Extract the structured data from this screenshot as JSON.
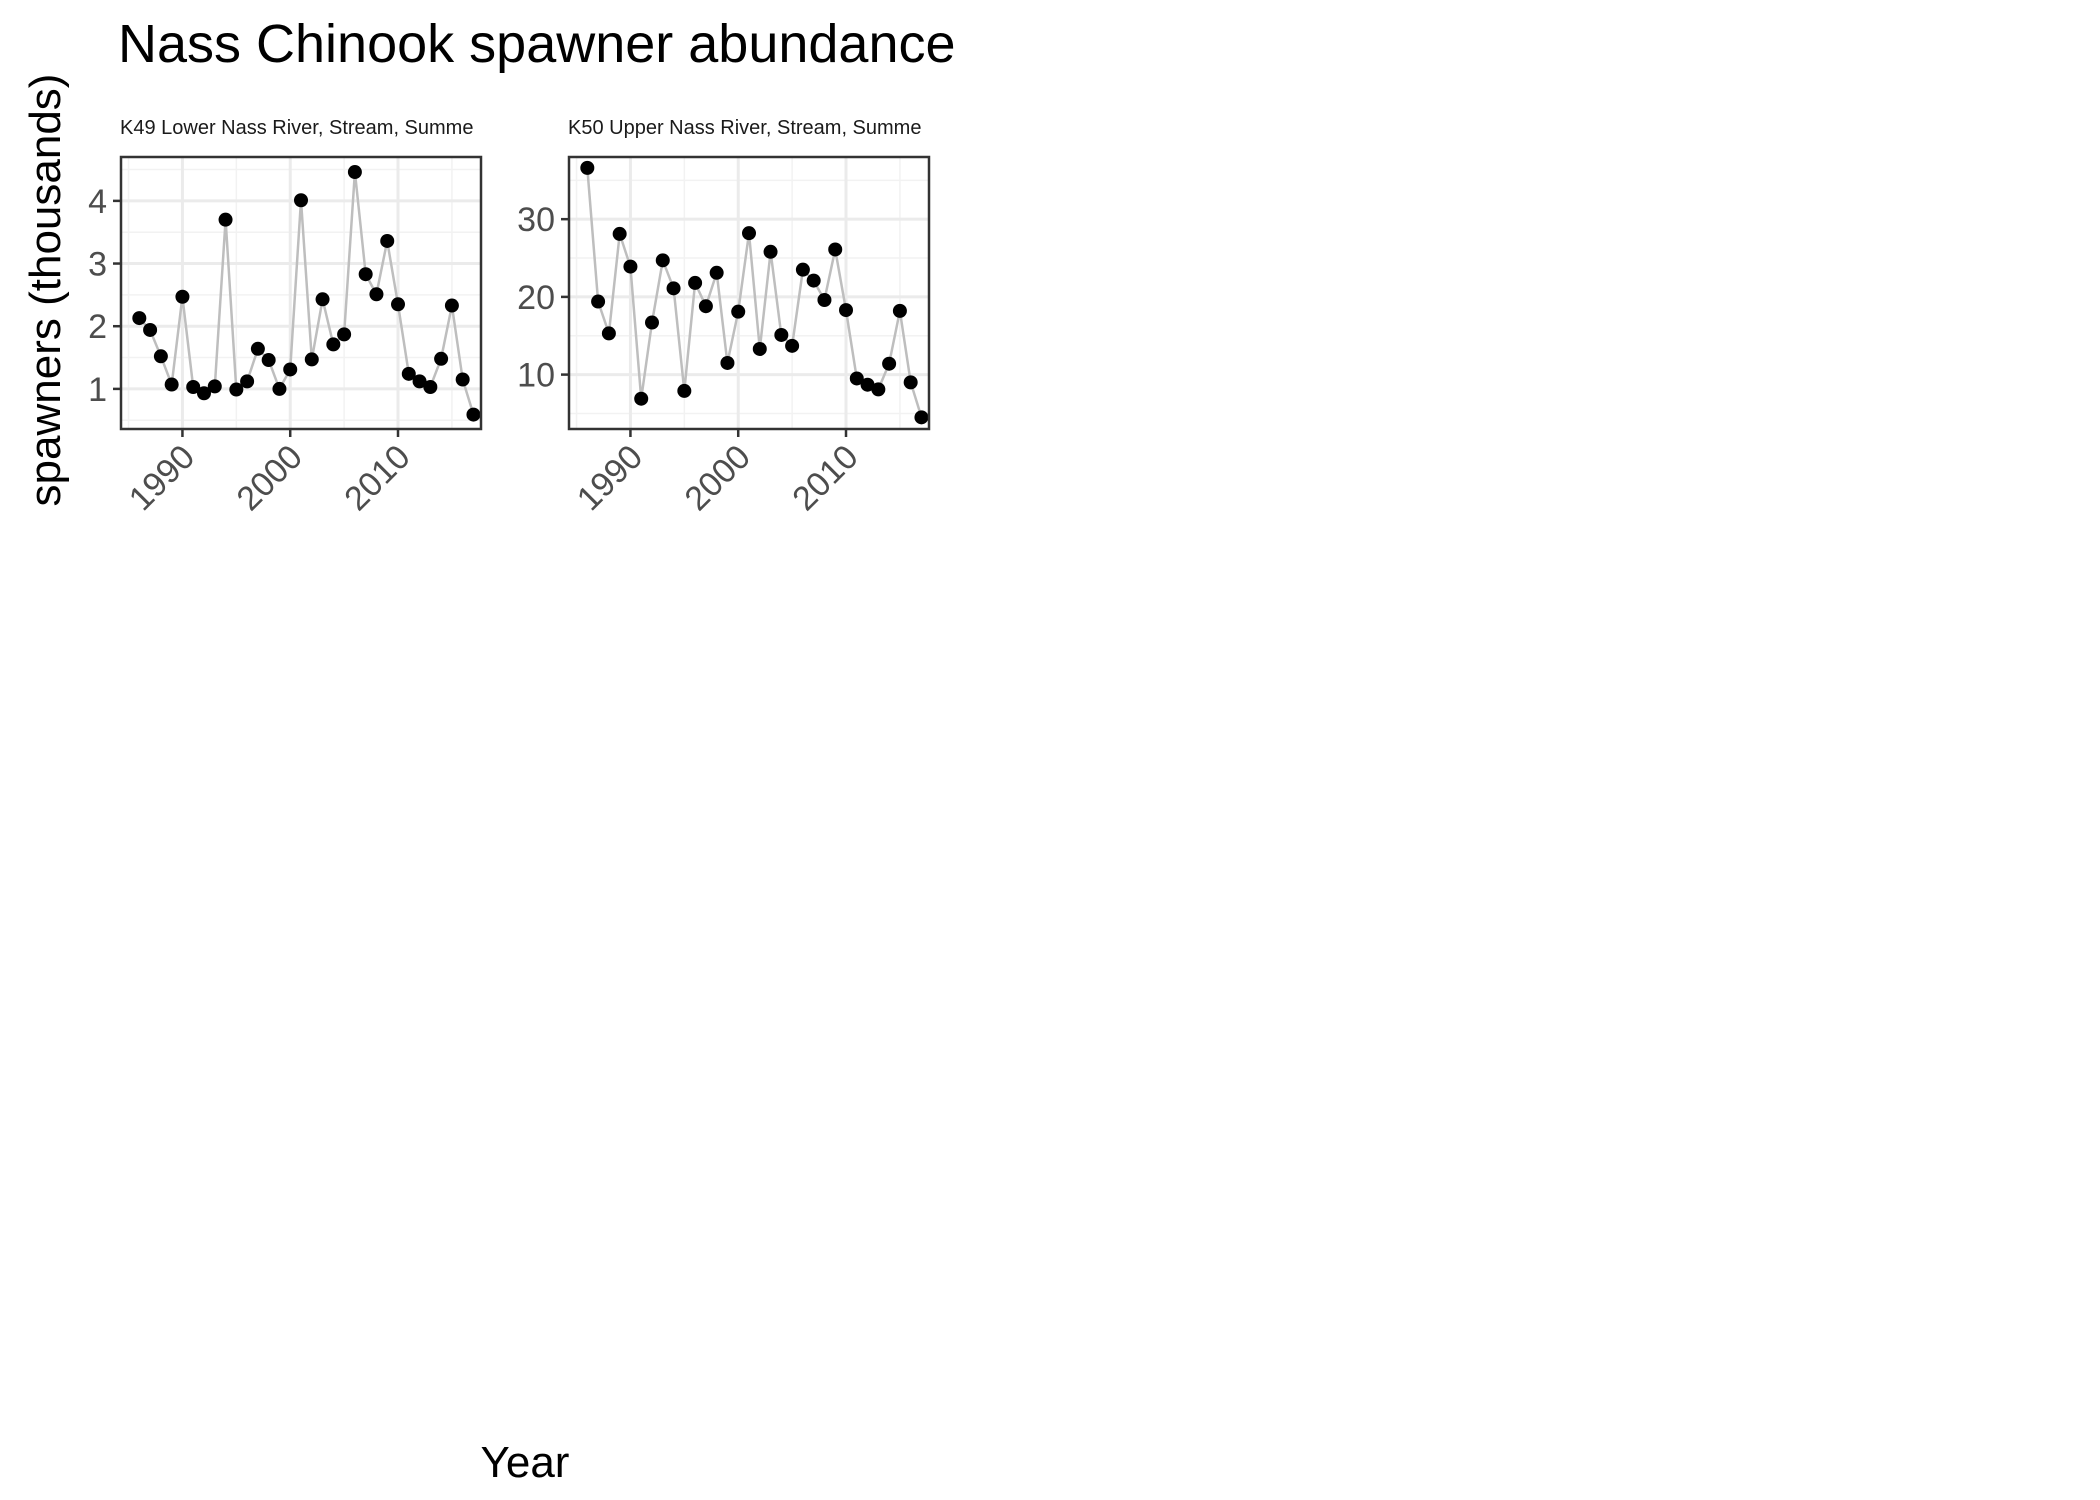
{
  "chart_data": {
    "type": "line",
    "title": "Nass Chinook spawner abundance",
    "xlabel": "Year",
    "ylabel": "spawners (thousands)",
    "grid": true,
    "line_color": "#BEBEBE",
    "point_color": "#000000",
    "xlim": [
      1984.3,
      2017.7
    ],
    "xticks": [
      1990,
      2000,
      2010
    ],
    "panels": [
      {
        "label": "K49 Lower Nass River, Stream, Summe",
        "ylim": [
          0.36,
          4.7
        ],
        "yticks": [
          1,
          2,
          3,
          4
        ],
        "x": [
          1986,
          1987,
          1988,
          1989,
          1990,
          1991,
          1992,
          1993,
          1994,
          1995,
          1996,
          1997,
          1998,
          1999,
          2000,
          2001,
          2002,
          2003,
          2004,
          2005,
          2006,
          2007,
          2008,
          2009,
          2010,
          2011,
          2012,
          2013,
          2014,
          2015,
          2016,
          2017
        ],
        "y": [
          2.13,
          1.94,
          1.52,
          1.07,
          2.47,
          1.03,
          0.93,
          1.04,
          3.7,
          0.99,
          1.12,
          1.64,
          1.46,
          1.0,
          1.31,
          4.01,
          1.47,
          2.43,
          1.71,
          1.87,
          4.46,
          2.83,
          2.51,
          3.36,
          2.35,
          1.24,
          1.12,
          1.03,
          1.48,
          2.33,
          1.15,
          0.59
        ]
      },
      {
        "label": "K50 Upper Nass River, Stream, Summe",
        "ylim": [
          3.0,
          38.0
        ],
        "yticks": [
          10,
          20,
          30
        ],
        "x": [
          1986,
          1987,
          1988,
          1989,
          1990,
          1991,
          1992,
          1993,
          1994,
          1995,
          1996,
          1997,
          1998,
          1999,
          2000,
          2001,
          2002,
          2003,
          2004,
          2005,
          2006,
          2007,
          2008,
          2009,
          2010,
          2011,
          2012,
          2013,
          2014,
          2015,
          2016,
          2017
        ],
        "y": [
          36.6,
          19.4,
          15.3,
          28.1,
          23.9,
          6.9,
          16.7,
          24.7,
          21.1,
          7.9,
          21.8,
          18.8,
          23.1,
          11.5,
          18.1,
          28.2,
          13.3,
          25.8,
          15.1,
          13.7,
          23.5,
          22.1,
          19.6,
          26.1,
          18.3,
          9.5,
          8.7,
          8.1,
          11.4,
          18.2,
          9.0,
          4.5
        ]
      }
    ]
  }
}
